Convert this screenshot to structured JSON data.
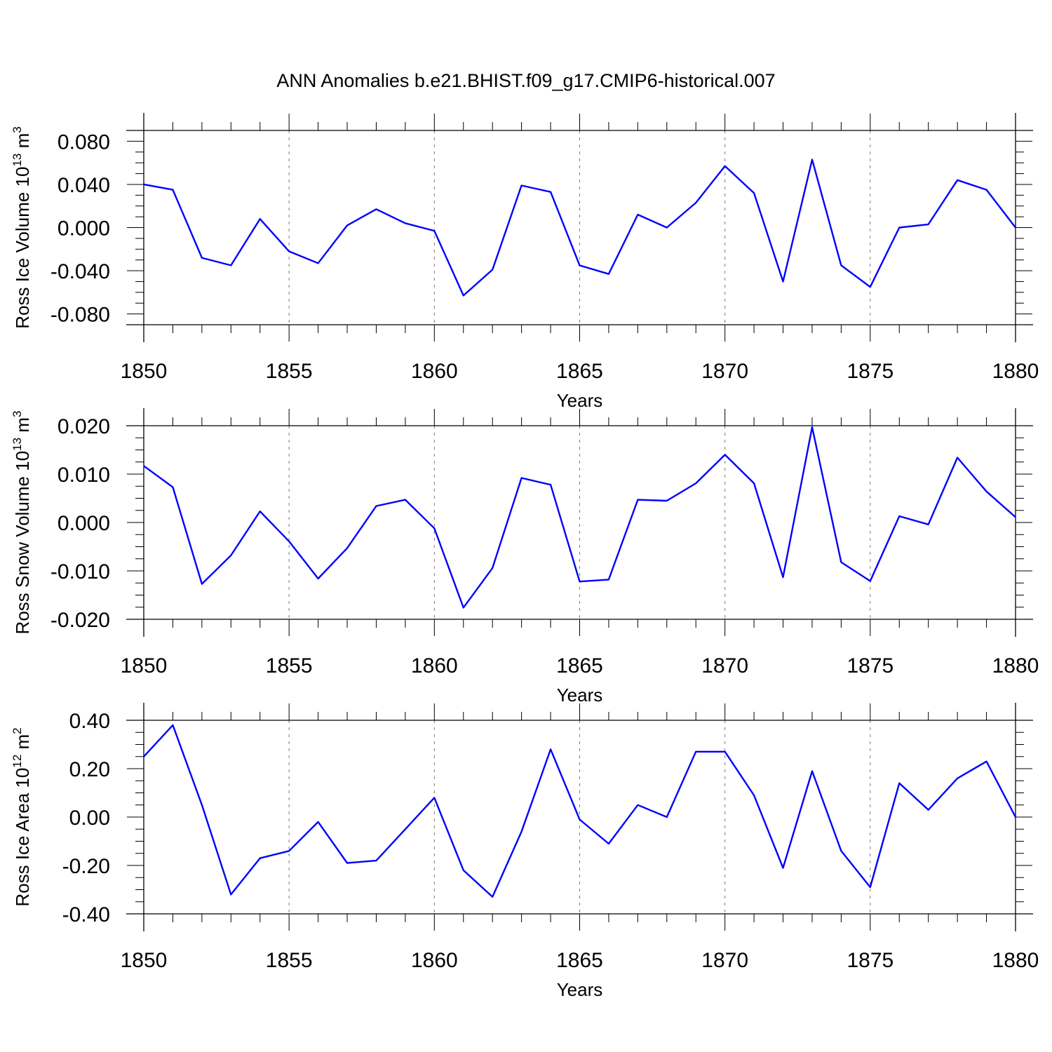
{
  "title": "ANN Anomalies b.e21.BHIST.f09_g17.CMIP6-historical.007",
  "line_color": "#0000ff",
  "chart_data": [
    {
      "type": "line",
      "series_name": "Ross Ice Volume",
      "ylabel_main": "Ross Ice Volume 10",
      "ylabel_exp": "13",
      "ylabel_unit": " m",
      "ylabel_unit_exp": "3",
      "xlabel": "Years",
      "xlim": [
        1850,
        1880
      ],
      "ylim": [
        -0.09,
        0.09
      ],
      "xticks": [
        1850,
        1855,
        1860,
        1865,
        1870,
        1875,
        1880
      ],
      "xtick_labels": [
        "1850",
        "1855",
        "1860",
        "1865",
        "1870",
        "1875",
        "1880"
      ],
      "yticks": [
        -0.08,
        -0.04,
        0.0,
        0.04,
        0.08
      ],
      "ytick_labels": [
        "-0.080",
        "-0.040",
        "0.000",
        "0.040",
        "0.080"
      ],
      "x": [
        1850,
        1851,
        1852,
        1853,
        1854,
        1855,
        1856,
        1857,
        1858,
        1859,
        1860,
        1861,
        1862,
        1863,
        1864,
        1865,
        1866,
        1867,
        1868,
        1869,
        1870,
        1871,
        1872,
        1873,
        1874,
        1875,
        1876,
        1877,
        1878,
        1879,
        1880
      ],
      "values": [
        0.04,
        0.035,
        -0.028,
        -0.035,
        0.008,
        -0.022,
        -0.033,
        0.002,
        0.017,
        0.004,
        -0.003,
        -0.063,
        -0.039,
        0.039,
        0.033,
        -0.035,
        -0.043,
        0.012,
        0.0,
        0.023,
        0.057,
        0.032,
        -0.05,
        0.063,
        -0.035,
        -0.055,
        0.0,
        0.003,
        0.044,
        0.035,
        0.0
      ]
    },
    {
      "type": "line",
      "series_name": "Ross Snow Volume",
      "ylabel_main": "Ross Snow Volume 10",
      "ylabel_exp": "13",
      "ylabel_unit": " m",
      "ylabel_unit_exp": "3",
      "xlabel": "Years",
      "xlim": [
        1850,
        1880
      ],
      "ylim": [
        -0.02,
        0.02
      ],
      "xticks": [
        1850,
        1855,
        1860,
        1865,
        1870,
        1875,
        1880
      ],
      "xtick_labels": [
        "1850",
        "1855",
        "1860",
        "1865",
        "1870",
        "1875",
        "1880"
      ],
      "yticks": [
        -0.02,
        -0.01,
        0.0,
        0.01,
        0.02
      ],
      "ytick_labels": [
        "-0.020",
        "-0.010",
        "0.000",
        "0.010",
        "0.020"
      ],
      "x": [
        1850,
        1851,
        1852,
        1853,
        1854,
        1855,
        1856,
        1857,
        1858,
        1859,
        1860,
        1861,
        1862,
        1863,
        1864,
        1865,
        1866,
        1867,
        1868,
        1869,
        1870,
        1871,
        1872,
        1873,
        1874,
        1875,
        1876,
        1877,
        1878,
        1879,
        1880
      ],
      "values": [
        0.0117,
        0.0073,
        -0.0127,
        -0.0068,
        0.0023,
        -0.0039,
        -0.0116,
        -0.0053,
        0.0034,
        0.0047,
        -0.0012,
        -0.0176,
        -0.0094,
        0.0092,
        0.0078,
        -0.0122,
        -0.0118,
        0.0047,
        0.0045,
        0.0081,
        0.014,
        0.0081,
        -0.0113,
        0.0197,
        -0.0082,
        -0.0121,
        0.0013,
        -0.0004,
        0.0134,
        0.0064,
        0.0011
      ]
    },
    {
      "type": "line",
      "series_name": "Ross Ice Area",
      "ylabel_main": "Ross Ice Area 10",
      "ylabel_exp": "12",
      "ylabel_unit": " m",
      "ylabel_unit_exp": "2",
      "xlabel": "Years",
      "xlim": [
        1850,
        1880
      ],
      "ylim": [
        -0.4,
        0.4
      ],
      "xticks": [
        1850,
        1855,
        1860,
        1865,
        1870,
        1875,
        1880
      ],
      "xtick_labels": [
        "1850",
        "1855",
        "1860",
        "1865",
        "1870",
        "1875",
        "1880"
      ],
      "yticks": [
        -0.4,
        -0.2,
        0.0,
        0.2,
        0.4
      ],
      "ytick_labels": [
        "-0.40",
        "-0.20",
        "0.00",
        "0.20",
        "0.40"
      ],
      "x": [
        1850,
        1851,
        1852,
        1853,
        1854,
        1855,
        1856,
        1857,
        1858,
        1859,
        1860,
        1861,
        1862,
        1863,
        1864,
        1865,
        1866,
        1867,
        1868,
        1869,
        1870,
        1871,
        1872,
        1873,
        1874,
        1875,
        1876,
        1877,
        1878,
        1879,
        1880
      ],
      "values": [
        0.25,
        0.38,
        0.05,
        -0.32,
        -0.17,
        -0.14,
        -0.02,
        -0.19,
        -0.18,
        -0.05,
        0.08,
        -0.22,
        -0.33,
        -0.06,
        0.28,
        -0.01,
        -0.11,
        0.05,
        0.0,
        0.27,
        0.27,
        0.09,
        -0.21,
        0.19,
        -0.14,
        -0.29,
        0.14,
        0.03,
        0.16,
        0.23,
        0.0
      ]
    }
  ]
}
